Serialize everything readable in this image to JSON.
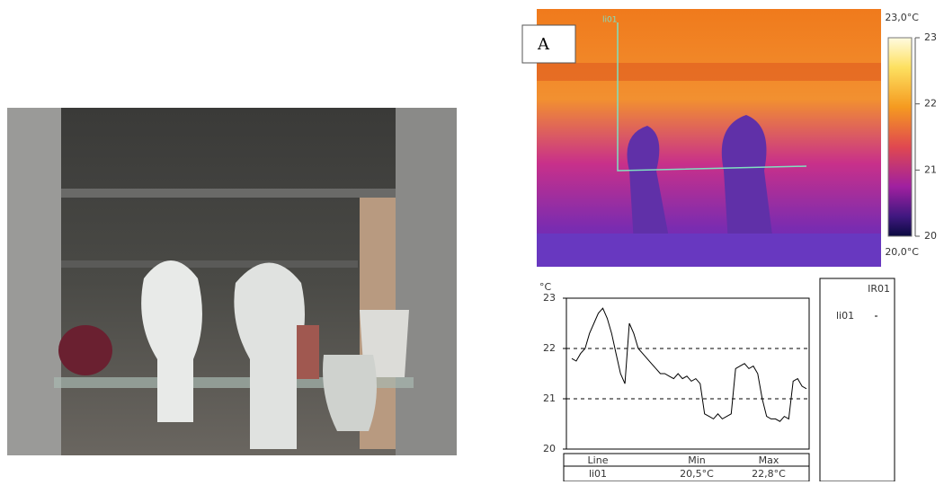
{
  "thermal_image": {
    "label": "A",
    "line_label": "li01",
    "scale_max_label": "23,0°C",
    "scale_min_label": "20,0°C",
    "scale_lim": [
      20,
      23
    ],
    "scale_ticks": [
      23,
      22,
      21,
      20
    ]
  },
  "chart_data": {
    "type": "line",
    "y_label": "°C",
    "legend_title": "IR01",
    "ylim": [
      20,
      23
    ],
    "yticks": [
      20,
      21,
      22,
      23
    ],
    "grid": true,
    "series": [
      {
        "name": "li01",
        "color": "#000000",
        "values": [
          21.8,
          21.75,
          21.9,
          22.0,
          22.3,
          22.5,
          22.7,
          22.8,
          22.6,
          22.3,
          21.9,
          21.5,
          21.3,
          22.5,
          22.3,
          22.0,
          21.9,
          21.8,
          21.7,
          21.6,
          21.5,
          21.5,
          21.45,
          21.4,
          21.5,
          21.4,
          21.45,
          21.35,
          21.4,
          21.3,
          20.7,
          20.65,
          20.6,
          20.7,
          20.6,
          20.65,
          20.7,
          21.6,
          21.65,
          21.7,
          21.6,
          21.65,
          21.5,
          21.0,
          20.65,
          20.6,
          20.6,
          20.55,
          20.65,
          20.6,
          21.35,
          21.4,
          21.25,
          21.2
        ]
      }
    ]
  },
  "stats_table": {
    "header": [
      "Line",
      "Min",
      "Max"
    ],
    "rows": [
      [
        "li01",
        "20,5°C",
        "22,8°C"
      ]
    ]
  }
}
